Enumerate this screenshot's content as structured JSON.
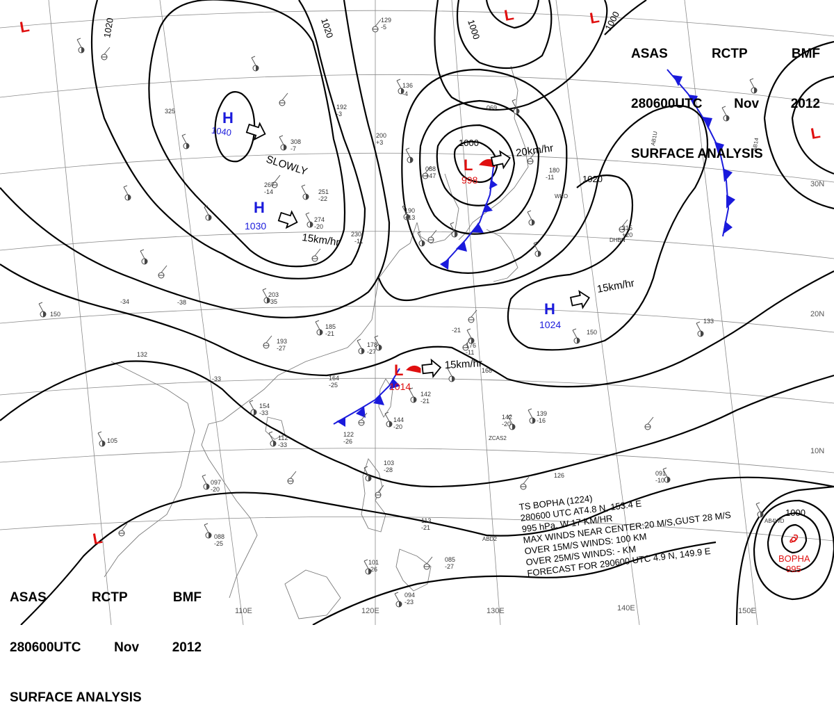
{
  "header": {
    "agency_1": "ASAS",
    "agency_2": "RCTP",
    "agency_3": "BMF",
    "time": "280600UTC",
    "month": "Nov",
    "year": "2012",
    "title": "SURFACE ANALYSIS"
  },
  "longitudes": [
    "110E",
    "120E",
    "130E",
    "140E",
    "150E"
  ],
  "latitudes": [
    "30N",
    "20N",
    "10N"
  ],
  "highs": [
    {
      "letter": "H",
      "pressure": "1040"
    },
    {
      "letter": "H",
      "pressure": "1030"
    },
    {
      "letter": "H",
      "pressure": "1024"
    }
  ],
  "lows": [
    {
      "letter": "L",
      "pressure": "998"
    },
    {
      "letter": "L",
      "pressure": "1014"
    }
  ],
  "motions": {
    "slowly": "SLOWLY",
    "m1030": "15km/hr",
    "m998": "20km/hr",
    "m1024": "15km/hr",
    "m1014": "15km/hr"
  },
  "isobar_labels": [
    "1020",
    "1020",
    "1000",
    "1000",
    "1000",
    "1020",
    "1000"
  ],
  "storm_info": [
    "TS  BOPHA  (1224)",
    "280600 UTC  AT4.8 N, 153.4 E",
    "995 hPa, W  17 KM/HR",
    "MAX WINDS NEAR CENTER:20 M/S,GUST 28 M/S",
    "OVER 15M/S WINDS: 100 KM",
    "OVER 25M/S WINDS: - KM",
    "FORECAST FOR 290600 UTC 4.9 N, 149.9 E"
  ],
  "typhoon": {
    "name": "BOPHA",
    "pressure": "995"
  },
  "colors": {
    "isobar": "#000000",
    "high": "#1a1adc",
    "low": "#e01010",
    "cold_front": "#1a1adc",
    "grid": "#8a8a8a",
    "coast": "#7a7a7a",
    "station": "#555555"
  },
  "station_labels": [
    "129",
    "-5",
    "136",
    "-4",
    "192",
    "-3",
    "200",
    "+3",
    "308",
    "-7",
    "267",
    "-14",
    "251",
    "-22",
    "274",
    "-20",
    "230",
    "-11",
    "088",
    "+47",
    "190",
    "+13",
    "069",
    "180",
    "-11",
    "215",
    "+20",
    "203",
    "-35",
    "185",
    "-21",
    "193",
    "-27",
    "178",
    "-27",
    "176",
    "-11",
    "168",
    "164",
    "-25",
    "142",
    "-21",
    "144",
    "-20",
    "154",
    "-33",
    "122",
    "-26",
    "112",
    "-33",
    "097",
    "-20",
    "088",
    "-25",
    "103",
    "-28",
    "113",
    "-21",
    "101",
    "-26",
    "094",
    "-23",
    "085",
    "-27",
    "091",
    "-10",
    "126",
    "133",
    "142",
    "-20",
    "139",
    "-16",
    "150",
    "105",
    "132",
    "325",
    "150",
    "-38",
    "-34",
    "-33",
    "-21"
  ],
  "station_ids": [
    "WKO",
    "DHBN",
    "ZCAS2",
    "AB14",
    "ABD2",
    "AB4WD",
    "AB1U"
  ]
}
